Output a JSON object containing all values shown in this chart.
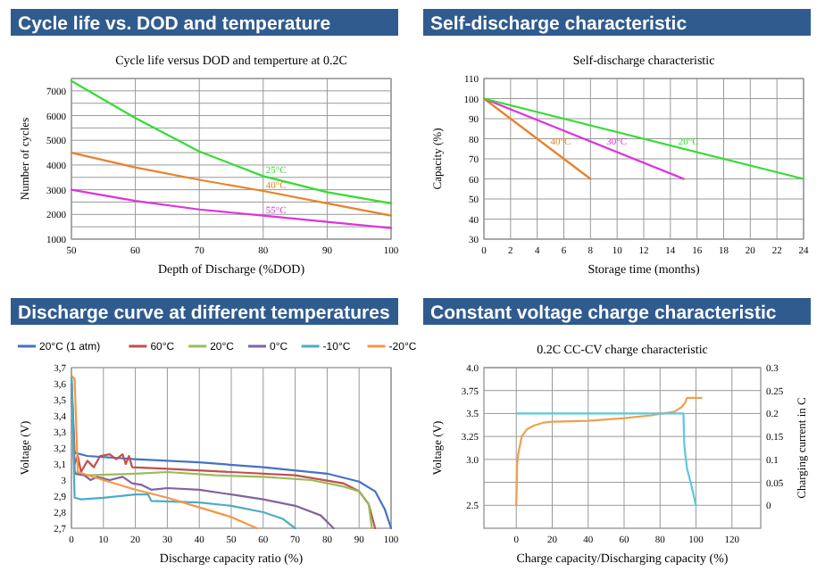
{
  "chart_data": [
    {
      "type": "line",
      "title": "Cycle life vs. DOD and temperature",
      "subtitle": "Cycle life versus DOD and temperture  at 0.2C",
      "xlabel": "Depth of Discharge (%DOD)",
      "ylabel": "Number of cycles",
      "x": [
        50,
        60,
        70,
        80,
        90,
        100
      ],
      "xlim": [
        50,
        100
      ],
      "xticks": [
        50,
        60,
        70,
        80,
        90,
        100
      ],
      "ylim": [
        1000,
        7500
      ],
      "yticks": [
        1000,
        {
          "value": 1500,
          "label": null
        },
        2000,
        {
          "value": 2500,
          "label": null
        },
        3000,
        {
          "value": 3500,
          "label": null
        },
        4000,
        {
          "value": 4500,
          "label": null
        },
        5000,
        {
          "value": 5500,
          "label": null
        },
        6000,
        {
          "value": 6500,
          "label": null
        },
        7000,
        {
          "value": 7500,
          "label": null
        }
      ],
      "grid": true,
      "legend": false,
      "series": [
        {
          "name": "25°C",
          "color": "#33dd33",
          "values": [
            7400,
            5900,
            4550,
            3550,
            2900,
            2450
          ]
        },
        {
          "name": "40°C",
          "color": "#e8822a",
          "values": [
            4500,
            3900,
            3400,
            2950,
            2450,
            1950
          ]
        },
        {
          "name": "55°C",
          "color": "#dd33dd",
          "values": [
            3000,
            2550,
            2200,
            1950,
            1700,
            1450
          ]
        }
      ]
    },
    {
      "type": "line",
      "title": "Self-discharge characteristic",
      "subtitle": "Self-discharge characteristic",
      "xlabel": "Storage time (months)",
      "ylabel": "Capacity (%)",
      "xlim": [
        0,
        24
      ],
      "xticks": [
        0,
        2,
        4,
        6,
        8,
        10,
        12,
        14,
        16,
        18,
        20,
        22,
        24
      ],
      "ylim": [
        30,
        110
      ],
      "yticks": [
        30,
        40,
        50,
        60,
        70,
        80,
        90,
        100,
        110
      ],
      "grid": true,
      "legend": false,
      "series": [
        {
          "name": "40°C",
          "color": "#e8822a",
          "x": [
            0,
            8
          ],
          "values": [
            100,
            60
          ]
        },
        {
          "name": "30°C",
          "color": "#dd33dd",
          "x": [
            0,
            15
          ],
          "values": [
            100,
            60
          ]
        },
        {
          "name": "20°C",
          "color": "#33dd33",
          "x": [
            0,
            24
          ],
          "values": [
            100,
            60
          ]
        }
      ]
    },
    {
      "type": "line",
      "title": "Discharge curve at different temperatures",
      "xlabel": "Discharge capacity ratio (%)",
      "ylabel": "Voltage (V)",
      "xlim": [
        0,
        100
      ],
      "xticks": [
        0,
        10,
        20,
        30,
        40,
        50,
        60,
        70,
        80,
        90,
        100
      ],
      "ylim": [
        2.7,
        3.7
      ],
      "yticks": [
        {
          "value": 2.7,
          "label": "2,7"
        },
        {
          "value": 2.8,
          "label": "2,8"
        },
        {
          "value": 2.9,
          "label": "2,9"
        },
        3,
        {
          "value": 3.1,
          "label": "3,1"
        },
        {
          "value": 3.2,
          "label": "3,2"
        },
        {
          "value": 3.3,
          "label": "3,3"
        },
        {
          "value": 3.4,
          "label": "3,4"
        },
        {
          "value": 3.5,
          "label": "3,5"
        },
        {
          "value": 3.6,
          "label": "3,6"
        },
        {
          "value": 3.7,
          "label": "3,7"
        }
      ],
      "grid": "x",
      "legend": "top",
      "series": [
        {
          "name": "20°C (1 atm)",
          "color": "#4472c4",
          "x": [
            0,
            1,
            5,
            20,
            40,
            60,
            80,
            90,
            95,
            98,
            100
          ],
          "values": [
            3.65,
            3.17,
            3.15,
            3.13,
            3.11,
            3.08,
            3.04,
            2.99,
            2.93,
            2.82,
            2.7
          ]
        },
        {
          "name": "60°C",
          "color": "#c0504d",
          "x": [
            0,
            1,
            2,
            3,
            5,
            7,
            9,
            12,
            14,
            16,
            17,
            18,
            19,
            30,
            50,
            70,
            85,
            90,
            93,
            95
          ],
          "values": [
            3.6,
            3.1,
            3.15,
            3.05,
            3.12,
            3.08,
            3.15,
            3.16,
            3.13,
            3.16,
            3.1,
            3.15,
            3.08,
            3.07,
            3.05,
            3.03,
            2.98,
            2.93,
            2.85,
            2.7
          ]
        },
        {
          "name": "20°C",
          "color": "#9bbb59",
          "x": [
            0,
            1,
            5,
            20,
            30,
            45,
            60,
            75,
            85,
            90,
            93,
            94
          ],
          "values": [
            3.6,
            3.05,
            3.03,
            3.04,
            3.05,
            3.03,
            3.02,
            3.0,
            2.96,
            2.93,
            2.85,
            2.7
          ]
        },
        {
          "name": "0°C",
          "color": "#8064a2",
          "x": [
            0,
            1,
            4,
            6,
            8,
            12,
            16,
            19,
            22,
            25,
            30,
            40,
            50,
            60,
            70,
            78,
            82
          ],
          "values": [
            3.6,
            3.04,
            3.03,
            3.0,
            3.02,
            3.0,
            3.02,
            2.98,
            2.97,
            2.94,
            2.95,
            2.94,
            2.91,
            2.88,
            2.84,
            2.78,
            2.7
          ]
        },
        {
          "name": "-10°C",
          "color": "#4bacc6",
          "x": [
            0,
            1,
            3,
            10,
            20,
            24,
            25,
            40,
            50,
            60,
            66,
            70
          ],
          "values": [
            3.65,
            2.89,
            2.88,
            2.89,
            2.91,
            2.91,
            2.87,
            2.86,
            2.84,
            2.8,
            2.76,
            2.7
          ]
        },
        {
          "name": "-20°C",
          "color": "#f79646",
          "x": [
            0,
            1,
            2,
            10,
            20,
            30,
            40,
            50,
            58
          ],
          "values": [
            3.65,
            3.63,
            3.05,
            3.0,
            2.94,
            2.89,
            2.83,
            2.77,
            2.7
          ]
        }
      ]
    },
    {
      "type": "line",
      "title": "Constant voltage charge characteristic",
      "subtitle": "0.2C   CC-CV charge characteristic",
      "xlabel": "Charge capacity/Discharging capacity (%)",
      "ylabel": "Voltage (V)",
      "y2label": "Charging current in C",
      "xlim": [
        -18,
        136
      ],
      "xticks": [
        0,
        20,
        40,
        60,
        80,
        100,
        120
      ],
      "ylim": [
        2.25,
        4.0
      ],
      "yticks": [
        {
          "value": 2.5,
          "label": "2.5"
        },
        {
          "value": 2.75,
          "label": null
        },
        {
          "value": 3.0,
          "label": "3.0"
        },
        3.25,
        3.5,
        3.75,
        {
          "value": 4.0,
          "label": "4.0"
        }
      ],
      "y2lim": [
        -0.05,
        0.3
      ],
      "y2ticks": [
        0,
        0.05,
        0.1,
        0.15,
        0.2,
        0.25,
        0.3
      ],
      "grid": true,
      "legend": false,
      "series": [
        {
          "color": "#f0a050",
          "x": [
            0,
            0.3,
            0.5,
            1,
            3,
            6,
            10,
            15,
            20,
            40,
            60,
            75,
            88,
            92,
            94,
            95,
            103
          ],
          "values": [
            2.5,
            2.75,
            2.95,
            3.05,
            3.25,
            3.33,
            3.37,
            3.4,
            3.41,
            3.42,
            3.45,
            3.48,
            3.52,
            3.57,
            3.62,
            3.67,
            3.67
          ]
        },
        {
          "color": "#5bc8e0",
          "axis": "y2",
          "x": [
            0,
            92,
            93,
            93.5,
            95,
            97,
            100
          ],
          "values": [
            0.2,
            0.2,
            0.2,
            0.13,
            0.08,
            0.05,
            0
          ]
        }
      ]
    }
  ]
}
